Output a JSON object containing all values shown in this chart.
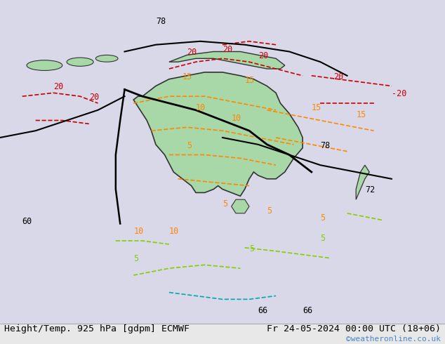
{
  "title_left": "Height/Temp. 925 hPa [gdpm] ECMWF",
  "title_right": "Fr 24-05-2024 00:00 UTC (18+06)",
  "copyright": "©weatheronline.co.uk",
  "bg_color": "#e8e8e8",
  "land_color": "#c8e6c8",
  "australia_fill": "#b8e0b8",
  "fig_width": 6.34,
  "fig_height": 4.9,
  "dpi": 100,
  "bottom_text_color": "#000000",
  "copyright_color": "#4488cc",
  "font_size_bottom": 9.5,
  "font_size_copyright": 8
}
